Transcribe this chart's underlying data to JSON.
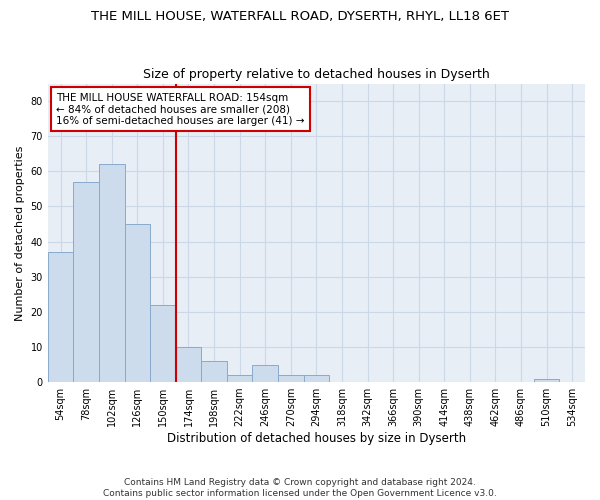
{
  "title1": "THE MILL HOUSE, WATERFALL ROAD, DYSERTH, RHYL, LL18 6ET",
  "title2": "Size of property relative to detached houses in Dyserth",
  "xlabel": "Distribution of detached houses by size in Dyserth",
  "ylabel": "Number of detached properties",
  "bin_labels": [
    "54sqm",
    "78sqm",
    "102sqm",
    "126sqm",
    "150sqm",
    "174sqm",
    "198sqm",
    "222sqm",
    "246sqm",
    "270sqm",
    "294sqm",
    "318sqm",
    "342sqm",
    "366sqm",
    "390sqm",
    "414sqm",
    "438sqm",
    "462sqm",
    "486sqm",
    "510sqm",
    "534sqm"
  ],
  "bar_heights": [
    37,
    57,
    62,
    45,
    22,
    10,
    6,
    2,
    5,
    2,
    2,
    0,
    0,
    0,
    0,
    0,
    0,
    0,
    0,
    1,
    0
  ],
  "bar_color": "#ccdcec",
  "bar_edge_color": "#88aacc",
  "grid_color": "#ccd8e8",
  "background_color": "#e8eef6",
  "vline_x_idx": 4,
  "vline_color": "#cc0000",
  "annotation_text": "THE MILL HOUSE WATERFALL ROAD: 154sqm\n← 84% of detached houses are smaller (208)\n16% of semi-detached houses are larger (41) →",
  "annotation_box_color": "#ffffff",
  "annotation_box_edge_color": "#cc0000",
  "footer_text": "Contains HM Land Registry data © Crown copyright and database right 2024.\nContains public sector information licensed under the Open Government Licence v3.0.",
  "ylim": [
    0,
    85
  ],
  "yticks": [
    0,
    10,
    20,
    30,
    40,
    50,
    60,
    70,
    80
  ],
  "title1_fontsize": 9.5,
  "title2_fontsize": 9,
  "ylabel_fontsize": 8,
  "xlabel_fontsize": 8.5,
  "tick_fontsize": 7,
  "annot_fontsize": 7.5,
  "footer_fontsize": 6.5
}
